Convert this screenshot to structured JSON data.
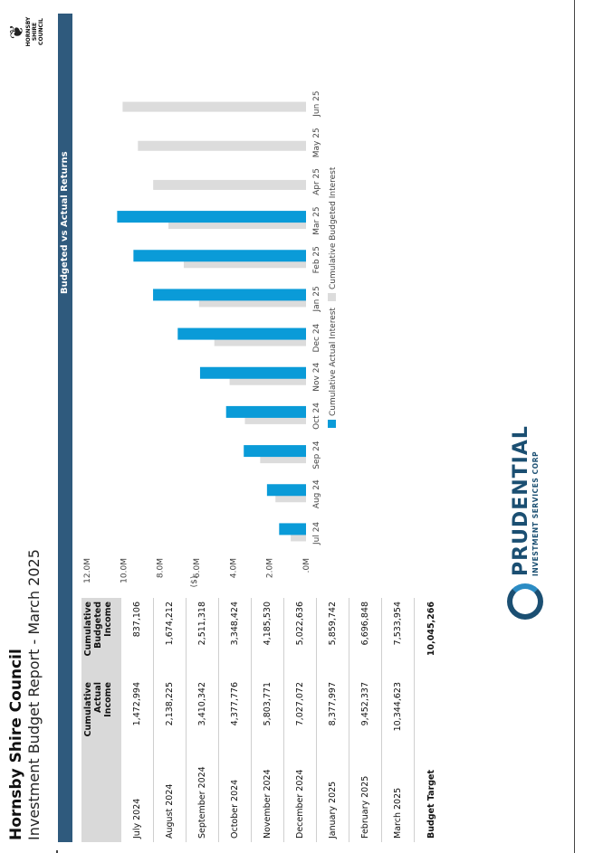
{
  "header": {
    "title": "Hornsby Shire Council",
    "subtitle": "Investment Budget Report - March 2025",
    "logo_text": "HORNSBY SHIRE COUNCIL"
  },
  "section": {
    "title": "Budgeted vs Actual Returns"
  },
  "table": {
    "columns": [
      "",
      "Cumulative Actual Income",
      "Cumulative Budgeted Income"
    ],
    "col1_lines": [
      "Cumulative",
      "Actual",
      "Income"
    ],
    "col2_lines": [
      "Cumulative",
      "Budgeted",
      "Income"
    ],
    "rows": [
      {
        "month": "July 2024",
        "actual": "1,472,994",
        "budgeted": "837,106"
      },
      {
        "month": "August 2024",
        "actual": "2,138,225",
        "budgeted": "1,674,212"
      },
      {
        "month": "September 2024",
        "actual": "3,410,342",
        "budgeted": "2,511,318"
      },
      {
        "month": "October 2024",
        "actual": "4,377,776",
        "budgeted": "3,348,424"
      },
      {
        "month": "November 2024",
        "actual": "5,803,771",
        "budgeted": "4,185,530"
      },
      {
        "month": "December 2024",
        "actual": "7,027,072",
        "budgeted": "5,022,636"
      },
      {
        "month": "January 2025",
        "actual": "8,377,997",
        "budgeted": "5,859,742"
      },
      {
        "month": "February 2025",
        "actual": "9,452,337",
        "budgeted": "6,696,848"
      },
      {
        "month": "March 2025",
        "actual": "10,344,623",
        "budgeted": "7,533,954"
      }
    ],
    "budget_label": "Budget Target",
    "budget_value": "10,045,266"
  },
  "chart_data": {
    "type": "bar",
    "categories": [
      "Jul 24",
      "Aug 24",
      "Sep 24",
      "Oct 24",
      "Nov 24",
      "Dec 24",
      "Jan 25",
      "Feb 25",
      "Mar 25",
      "Apr 25",
      "May 25",
      "Jun 25"
    ],
    "series": [
      {
        "name": "Cumulative Actual Interest",
        "color": "#0a9bd8",
        "values": [
          1472994,
          2138225,
          3410342,
          4377776,
          5803771,
          7027072,
          8377997,
          9452337,
          10344623,
          null,
          null,
          null
        ]
      },
      {
        "name": "Cumulative Budgeted Interest",
        "color": "#dcdcdc",
        "values": [
          837106,
          1674212,
          2511318,
          3348424,
          4185530,
          5022636,
          5859742,
          6696848,
          7533954,
          8371060,
          9208166,
          10045266
        ]
      }
    ],
    "ylabel": "($)",
    "ylim": [
      0,
      12000000
    ],
    "ytick_values": [
      0,
      2000000,
      4000000,
      6000000,
      8000000,
      10000000,
      12000000
    ],
    "ytick_labels": [
      ".0M",
      "2.0M",
      "4.0M",
      "6.0M",
      "8.0M",
      "10.0M",
      "12.0M"
    ],
    "legend_position": "bottom",
    "grid": false
  },
  "footer": {
    "brand_name": "PRUDENTIAL",
    "brand_sub": "INVESTMENT SERVICES CORP"
  }
}
